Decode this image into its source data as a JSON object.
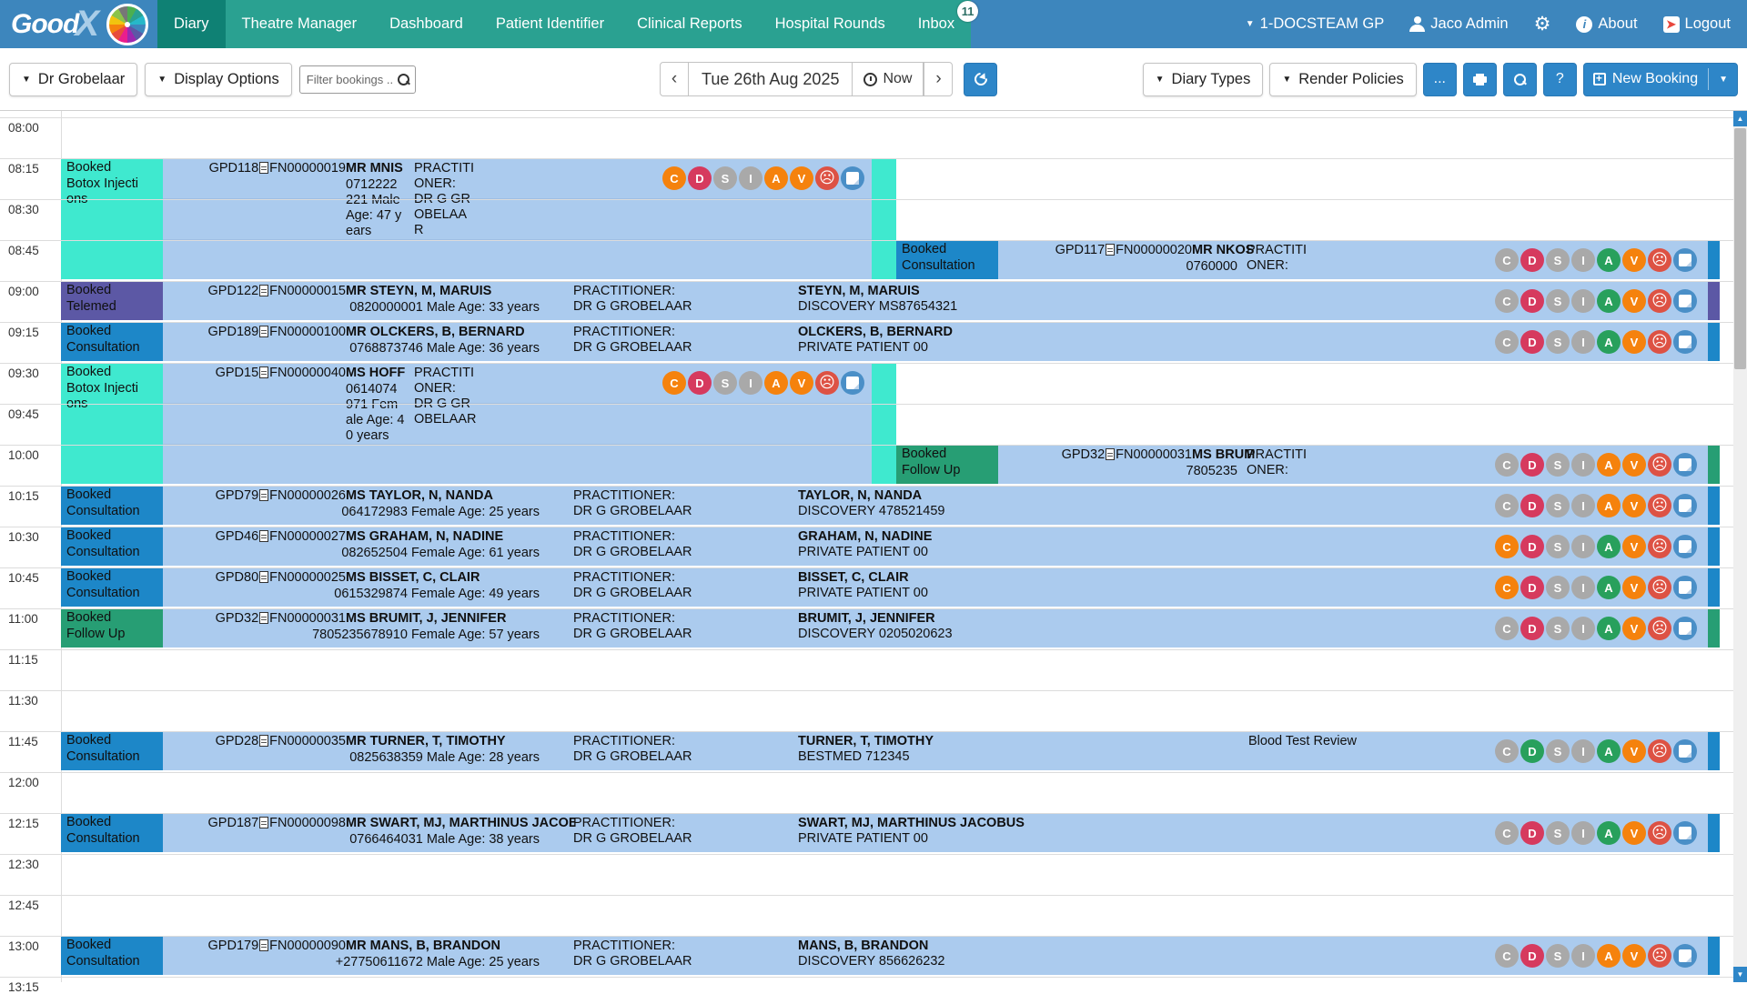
{
  "nav": {
    "logo_text": "Good",
    "logo_x": "X",
    "items": [
      {
        "label": "Diary",
        "active": true
      },
      {
        "label": "Theatre Manager",
        "active": false
      },
      {
        "label": "Dashboard",
        "active": false
      },
      {
        "label": "Patient Identifier",
        "active": false
      },
      {
        "label": "Clinical Reports",
        "active": false
      },
      {
        "label": "Hospital Rounds",
        "active": false
      },
      {
        "label": "Inbox",
        "active": false,
        "badge": "11"
      }
    ],
    "practice": "1-DOCSTEAM GP",
    "user": "Jaco Admin",
    "about": "About",
    "logout": "Logout"
  },
  "toolbar": {
    "practitioner_select": "Dr Grobelaar",
    "display_options": "Display Options",
    "filter_placeholder": "Filter bookings ...",
    "date": "Tue 26th Aug 2025",
    "now": "Now",
    "diary_types": "Diary Types",
    "render_policies": "Render Policies",
    "more": "...",
    "help": "?",
    "new_booking": "New Booking"
  },
  "diary": {
    "times": [
      "08:00",
      "08:15",
      "08:30",
      "08:45",
      "09:00",
      "09:15",
      "09:30",
      "09:45",
      "10:00",
      "10:15",
      "10:30",
      "10:45",
      "11:00",
      "11:15",
      "11:30",
      "11:45",
      "12:00",
      "12:15",
      "12:30",
      "12:45",
      "13:00",
      "13:15"
    ]
  },
  "colors": {
    "consultation": "#1d87c8",
    "telemed": "#5c58a5",
    "botox": "#3fe9cf",
    "follow_up": "#279e74",
    "icon": {
      "orange": "#f5820d",
      "crimson": "#d63a5e",
      "gray": "#a9a9a9",
      "green": "#28a05c",
      "red": "#dd5244",
      "blue": "#4a8fc7"
    }
  },
  "bookings": [
    {
      "time": "08:15",
      "slots": 3,
      "lane": "left",
      "label": "Booked\nBotox Injecti\nons",
      "type_color": "#3fe9cf",
      "file_no": "GPD118",
      "account_no": "FN00000019",
      "name": "MR MNIS",
      "details": "0712222\n221 Male\nAge: 47 y\nears",
      "practitioner": "PRACTITI\nONER:\nDR G GR\nOBELAA\nR",
      "aid_name": "",
      "aid_scheme": "",
      "note": "",
      "icons": [
        {
          "label": "C",
          "color": "orange"
        },
        {
          "label": "D",
          "color": "crimson"
        },
        {
          "label": "S",
          "color": "gray"
        },
        {
          "label": "I",
          "color": "gray"
        },
        {
          "label": "A",
          "color": "orange"
        },
        {
          "label": "V",
          "color": "orange"
        },
        {
          "label": "sad",
          "color": "red"
        },
        {
          "label": "note",
          "color": "blue"
        }
      ]
    },
    {
      "time": "08:45",
      "slots": 1,
      "lane": "right",
      "label": "Booked\nConsultation",
      "type_color": "#1d87c8",
      "file_no": "GPD117",
      "account_no": "FN00000020",
      "name": "MR NKOS",
      "details": "0760000",
      "practitioner": "PRACTITI\nONER:",
      "aid_name": "",
      "aid_scheme": "",
      "note": "",
      "icons": [
        {
          "label": "C",
          "color": "gray"
        },
        {
          "label": "D",
          "color": "crimson"
        },
        {
          "label": "S",
          "color": "gray"
        },
        {
          "label": "I",
          "color": "gray"
        },
        {
          "label": "A",
          "color": "green"
        },
        {
          "label": "V",
          "color": "orange"
        },
        {
          "label": "sad",
          "color": "red"
        },
        {
          "label": "note",
          "color": "blue"
        }
      ]
    },
    {
      "time": "09:00",
      "slots": 1,
      "lane": "full",
      "label": "Booked\nTelemed",
      "type_color": "#5c58a5",
      "file_no": "GPD122",
      "account_no": "FN00000015",
      "name": "MR STEYN, M, MARUIS",
      "details": "0820000001 Male Age: 33 years",
      "practitioner": "PRACTITIONER:\nDR G GROBELAAR",
      "aid_name": "STEYN, M, MARUIS",
      "aid_scheme": "DISCOVERY MS87654321",
      "note": "",
      "icons": [
        {
          "label": "C",
          "color": "gray"
        },
        {
          "label": "D",
          "color": "crimson"
        },
        {
          "label": "S",
          "color": "gray"
        },
        {
          "label": "I",
          "color": "gray"
        },
        {
          "label": "A",
          "color": "green"
        },
        {
          "label": "V",
          "color": "orange"
        },
        {
          "label": "sad",
          "color": "red"
        },
        {
          "label": "note",
          "color": "blue"
        }
      ]
    },
    {
      "time": "09:15",
      "slots": 1,
      "lane": "full",
      "label": "Booked\nConsultation",
      "type_color": "#1d87c8",
      "file_no": "GPD189",
      "account_no": "FN00000100",
      "name": "MR OLCKERS, B, BERNARD",
      "details": "0768873746 Male Age: 36 years",
      "practitioner": "PRACTITIONER:\nDR G GROBELAAR",
      "aid_name": "OLCKERS, B, BERNARD",
      "aid_scheme": "PRIVATE PATIENT 00",
      "note": "",
      "icons": [
        {
          "label": "C",
          "color": "gray"
        },
        {
          "label": "D",
          "color": "crimson"
        },
        {
          "label": "S",
          "color": "gray"
        },
        {
          "label": "I",
          "color": "gray"
        },
        {
          "label": "A",
          "color": "green"
        },
        {
          "label": "V",
          "color": "orange"
        },
        {
          "label": "sad",
          "color": "red"
        },
        {
          "label": "note",
          "color": "blue"
        }
      ]
    },
    {
      "time": "09:30",
      "slots": 3,
      "lane": "left",
      "label": "Booked\nBotox Injecti\nons",
      "type_color": "#3fe9cf",
      "file_no": "GPD15",
      "account_no": "FN00000040",
      "name": "MS HOFF",
      "details": "0614074\n971 Fem\nale Age: 4\n0 years",
      "practitioner": "PRACTITI\nONER:\nDR G GR\nOBELAAR",
      "aid_name": "",
      "aid_scheme": "",
      "note": "",
      "icons": [
        {
          "label": "C",
          "color": "orange"
        },
        {
          "label": "D",
          "color": "crimson"
        },
        {
          "label": "S",
          "color": "gray"
        },
        {
          "label": "I",
          "color": "gray"
        },
        {
          "label": "A",
          "color": "orange"
        },
        {
          "label": "V",
          "color": "orange"
        },
        {
          "label": "sad",
          "color": "red"
        },
        {
          "label": "note",
          "color": "blue"
        }
      ]
    },
    {
      "time": "10:00",
      "slots": 1,
      "lane": "right",
      "label": "Booked\nFollow Up",
      "type_color": "#279e74",
      "file_no": "GPD32",
      "account_no": "FN00000031",
      "name": "MS BRUM",
      "details": "7805235",
      "practitioner": "PRACTITI\nONER:",
      "aid_name": "",
      "aid_scheme": "",
      "note": "",
      "icons": [
        {
          "label": "C",
          "color": "gray"
        },
        {
          "label": "D",
          "color": "crimson"
        },
        {
          "label": "S",
          "color": "gray"
        },
        {
          "label": "I",
          "color": "gray"
        },
        {
          "label": "A",
          "color": "orange"
        },
        {
          "label": "V",
          "color": "orange"
        },
        {
          "label": "sad",
          "color": "red"
        },
        {
          "label": "note",
          "color": "blue"
        }
      ]
    },
    {
      "time": "10:15",
      "slots": 1,
      "lane": "full",
      "label": "Booked\nConsultation",
      "type_color": "#1d87c8",
      "file_no": "GPD79",
      "account_no": "FN00000026",
      "name": "MS TAYLOR, N, NANDA",
      "details": "064172983 Female Age: 25 years",
      "practitioner": "PRACTITIONER:\nDR G GROBELAAR",
      "aid_name": "TAYLOR, N, NANDA",
      "aid_scheme": "DISCOVERY 478521459",
      "note": "",
      "icons": [
        {
          "label": "C",
          "color": "gray"
        },
        {
          "label": "D",
          "color": "crimson"
        },
        {
          "label": "S",
          "color": "gray"
        },
        {
          "label": "I",
          "color": "gray"
        },
        {
          "label": "A",
          "color": "orange"
        },
        {
          "label": "V",
          "color": "orange"
        },
        {
          "label": "sad",
          "color": "red"
        },
        {
          "label": "note",
          "color": "blue"
        }
      ]
    },
    {
      "time": "10:30",
      "slots": 1,
      "lane": "full",
      "label": "Booked\nConsultation",
      "type_color": "#1d87c8",
      "file_no": "GPD46",
      "account_no": "FN00000027",
      "name": "MS GRAHAM, N, NADINE",
      "details": "082652504 Female Age: 61 years",
      "practitioner": "PRACTITIONER:\nDR G GROBELAAR",
      "aid_name": "GRAHAM, N, NADINE",
      "aid_scheme": "PRIVATE PATIENT 00",
      "note": "",
      "icons": [
        {
          "label": "C",
          "color": "orange"
        },
        {
          "label": "D",
          "color": "crimson"
        },
        {
          "label": "S",
          "color": "gray"
        },
        {
          "label": "I",
          "color": "gray"
        },
        {
          "label": "A",
          "color": "green"
        },
        {
          "label": "V",
          "color": "orange"
        },
        {
          "label": "sad",
          "color": "red"
        },
        {
          "label": "note",
          "color": "blue"
        }
      ]
    },
    {
      "time": "10:45",
      "slots": 1,
      "lane": "full",
      "label": "Booked\nConsultation",
      "type_color": "#1d87c8",
      "file_no": "GPD80",
      "account_no": "FN00000025",
      "name": "MS BISSET, C, CLAIR",
      "details": "0615329874 Female Age: 49 years",
      "practitioner": "PRACTITIONER:\nDR G GROBELAAR",
      "aid_name": "BISSET, C, CLAIR",
      "aid_scheme": "PRIVATE PATIENT 00",
      "note": "",
      "icons": [
        {
          "label": "C",
          "color": "orange"
        },
        {
          "label": "D",
          "color": "crimson"
        },
        {
          "label": "S",
          "color": "gray"
        },
        {
          "label": "I",
          "color": "gray"
        },
        {
          "label": "A",
          "color": "green"
        },
        {
          "label": "V",
          "color": "orange"
        },
        {
          "label": "sad",
          "color": "red"
        },
        {
          "label": "note",
          "color": "blue"
        }
      ]
    },
    {
      "time": "11:00",
      "slots": 1,
      "lane": "full",
      "label": "Booked\nFollow Up",
      "type_color": "#279e74",
      "file_no": "GPD32",
      "account_no": "FN00000031",
      "name": "MS BRUMIT, J, JENNIFER",
      "details": "7805235678910 Female Age: 57 years",
      "practitioner": "PRACTITIONER:\nDR G GROBELAAR",
      "aid_name": "BRUMIT, J, JENNIFER",
      "aid_scheme": "DISCOVERY 0205020623",
      "note": "",
      "icons": [
        {
          "label": "C",
          "color": "gray"
        },
        {
          "label": "D",
          "color": "crimson"
        },
        {
          "label": "S",
          "color": "gray"
        },
        {
          "label": "I",
          "color": "gray"
        },
        {
          "label": "A",
          "color": "green"
        },
        {
          "label": "V",
          "color": "orange"
        },
        {
          "label": "sad",
          "color": "red"
        },
        {
          "label": "note",
          "color": "blue"
        }
      ]
    },
    {
      "time": "11:45",
      "slots": 1,
      "lane": "full",
      "label": "Booked\nConsultation",
      "type_color": "#1d87c8",
      "file_no": "GPD28",
      "account_no": "FN00000035",
      "name": "MR TURNER, T, TIMOTHY",
      "details": "0825638359 Male Age: 28 years",
      "practitioner": "PRACTITIONER:\nDR G GROBELAAR",
      "aid_name": "TURNER, T, TIMOTHY",
      "aid_scheme": "BESTMED 712345",
      "note": "Blood Test Review",
      "icons": [
        {
          "label": "C",
          "color": "gray"
        },
        {
          "label": "D",
          "color": "green"
        },
        {
          "label": "S",
          "color": "gray"
        },
        {
          "label": "I",
          "color": "gray"
        },
        {
          "label": "A",
          "color": "green"
        },
        {
          "label": "V",
          "color": "orange"
        },
        {
          "label": "sad",
          "color": "red"
        },
        {
          "label": "note",
          "color": "blue"
        }
      ]
    },
    {
      "time": "12:15",
      "slots": 1,
      "lane": "full",
      "label": "Booked\nConsultation",
      "type_color": "#1d87c8",
      "file_no": "GPD187",
      "account_no": "FN00000098",
      "name": "MR SWART, MJ, MARTHINUS JACOB",
      "details": "0766464031 Male Age: 38 years",
      "practitioner": "PRACTITIONER:\nDR G GROBELAAR",
      "aid_name": "SWART, MJ, MARTHINUS JACOBUS",
      "aid_scheme": "PRIVATE PATIENT 00",
      "note": "",
      "icons": [
        {
          "label": "C",
          "color": "gray"
        },
        {
          "label": "D",
          "color": "crimson"
        },
        {
          "label": "S",
          "color": "gray"
        },
        {
          "label": "I",
          "color": "gray"
        },
        {
          "label": "A",
          "color": "green"
        },
        {
          "label": "V",
          "color": "orange"
        },
        {
          "label": "sad",
          "color": "red"
        },
        {
          "label": "note",
          "color": "blue"
        }
      ]
    },
    {
      "time": "13:00",
      "slots": 1,
      "lane": "full",
      "label": "Booked\nConsultation",
      "type_color": "#1d87c8",
      "file_no": "GPD179",
      "account_no": "FN00000090",
      "name": "MR MANS, B, BRANDON",
      "details": "+27750611672 Male Age: 25 years",
      "practitioner": "PRACTITIONER:\nDR G GROBELAAR",
      "aid_name": "MANS, B, BRANDON",
      "aid_scheme": "DISCOVERY 856626232",
      "note": "",
      "icons": [
        {
          "label": "C",
          "color": "gray"
        },
        {
          "label": "D",
          "color": "crimson"
        },
        {
          "label": "S",
          "color": "gray"
        },
        {
          "label": "I",
          "color": "gray"
        },
        {
          "label": "A",
          "color": "orange"
        },
        {
          "label": "V",
          "color": "orange"
        },
        {
          "label": "sad",
          "color": "red"
        },
        {
          "label": "note",
          "color": "blue"
        }
      ]
    }
  ]
}
